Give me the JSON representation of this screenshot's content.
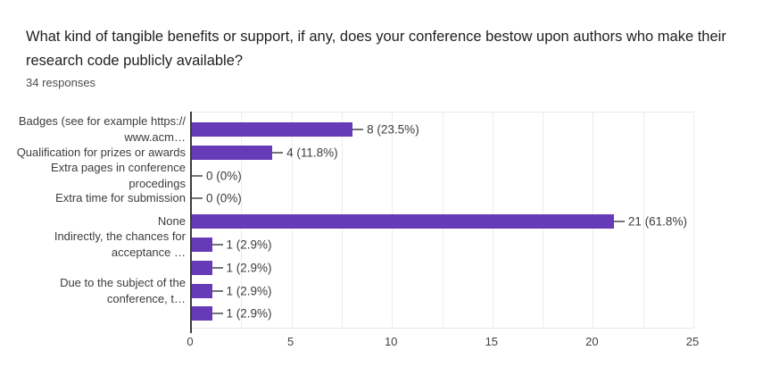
{
  "header": {
    "title": "What kind of tangible benefits or support, if any, does your conference bestow upon authors who make their research code publicly available?",
    "responses": "34 responses"
  },
  "chart_data": {
    "type": "bar",
    "orientation": "horizontal",
    "title": "What kind of tangible benefits or support, if any, does your conference bestow upon authors who make their research code publicly available?",
    "subtitle": "34 responses",
    "categories": [
      "Badges (see for example https://www.acm…",
      "Qualification for prizes or awards",
      "Extra pages in conference procedings",
      "Extra time for submission",
      "None",
      "Indirectly, the chances for acceptance …",
      "",
      "Due to the subject of the conference, t…",
      ""
    ],
    "category_label_lines": [
      [
        "Badges (see for example https://",
        "www.acm…"
      ],
      [
        "Qualification for prizes or awards"
      ],
      [
        "Extra pages in conference",
        "procedings"
      ],
      [
        "Extra time for submission"
      ],
      [
        "None"
      ],
      [
        "Indirectly, the chances for",
        "acceptance …"
      ],
      [],
      [
        "Due to the subject of the",
        "conference, t…"
      ],
      []
    ],
    "values": [
      8,
      4,
      0,
      0,
      21,
      1,
      1,
      1,
      1
    ],
    "value_labels": [
      "8 (23.5%)",
      "4 (11.8%)",
      "0 (0%)",
      "0 (0%)",
      "21 (61.8%)",
      "1 (2.9%)",
      "1 (2.9%)",
      "1 (2.9%)",
      "1 (2.9%)"
    ],
    "total_responses": 34,
    "xlim": [
      0,
      25
    ],
    "x_ticks": [
      0,
      5,
      10,
      15,
      20,
      25
    ],
    "gridline_step": 2.5,
    "grid": true,
    "legend": false,
    "bar_color": "#673ab7",
    "axis_color": "#3c3c3c",
    "grid_color": "#ededed",
    "label_color": "#3c3c3c"
  }
}
